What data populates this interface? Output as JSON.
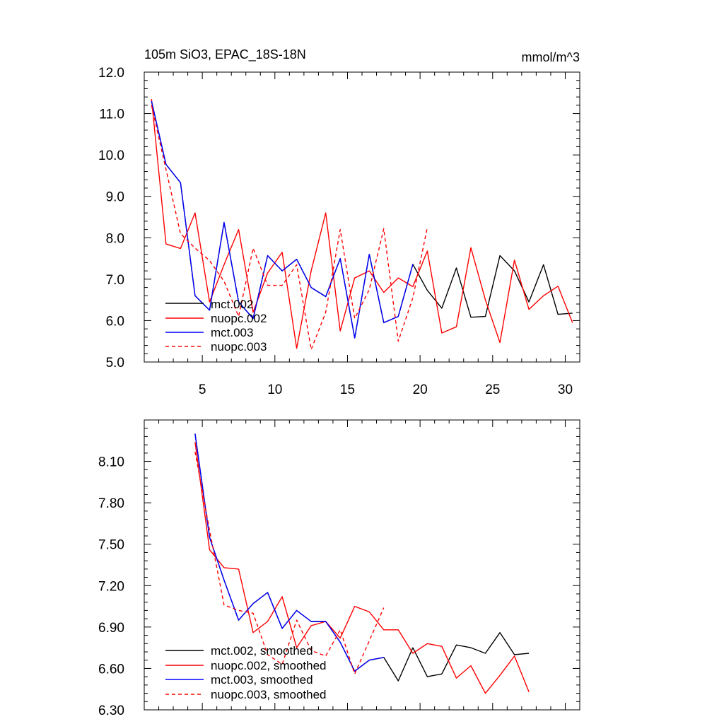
{
  "chart_data": [
    {
      "type": "line",
      "title": "105m SiO3, EPAC_18S-18N",
      "units": "mmol/m^3",
      "xlabel": "",
      "ylabel": "",
      "xlim": [
        1,
        31
      ],
      "ylim": [
        5.0,
        12.0
      ],
      "xticks": [
        5,
        10,
        15,
        20,
        25,
        30
      ],
      "xtick_labels": [
        "5",
        "10",
        "15",
        "20",
        "25",
        "30"
      ],
      "yticks": [
        5.0,
        6.0,
        7.0,
        8.0,
        9.0,
        10.0,
        11.0,
        12.0
      ],
      "ytick_labels": [
        "5.0",
        "6.0",
        "7.0",
        "8.0",
        "9.0",
        "10.0",
        "11.0",
        "12.0"
      ],
      "legend_position": "bottom-left",
      "series": [
        {
          "name": "mct.002",
          "color": "#000000",
          "dash": "solid",
          "x": [
            1.5,
            2.5,
            3.5,
            4.5,
            5.5,
            6.5,
            7.5,
            8.5,
            9.5,
            10.5,
            11.5,
            12.5,
            13.5,
            14.5,
            15.5,
            16.5,
            17.5,
            18.5,
            19.5,
            20.5,
            21.5,
            22.5,
            23.5,
            24.5,
            25.5,
            26.5,
            27.5,
            28.5,
            29.5,
            30.5
          ],
          "values": [
            11.3,
            9.77,
            9.33,
            6.6,
            6.25,
            8.37,
            6.45,
            6.05,
            7.57,
            7.2,
            7.48,
            6.8,
            6.58,
            7.5,
            5.58,
            7.6,
            5.95,
            6.1,
            7.36,
            6.73,
            6.3,
            7.27,
            6.08,
            6.1,
            7.57,
            7.2,
            6.45,
            7.35,
            6.15,
            6.18
          ]
        },
        {
          "name": "nuopc.002",
          "color": "#ff0000",
          "dash": "solid",
          "x": [
            1.5,
            2.5,
            3.5,
            4.5,
            5.5,
            6.5,
            7.5,
            8.5,
            9.5,
            10.5,
            11.5,
            12.5,
            13.5,
            14.5,
            15.5,
            16.5,
            17.5,
            18.5,
            19.5,
            20.5,
            21.5,
            22.5,
            23.5,
            24.5,
            25.5,
            26.5,
            27.5,
            28.5,
            29.5,
            30.5
          ],
          "values": [
            11.35,
            7.85,
            7.74,
            8.6,
            6.45,
            7.35,
            8.2,
            6.2,
            7.15,
            7.65,
            5.33,
            7.2,
            8.6,
            5.75,
            7.03,
            7.2,
            6.68,
            7.03,
            6.82,
            7.68,
            5.7,
            5.85,
            7.76,
            6.5,
            5.47,
            7.46,
            6.27,
            6.6,
            6.83,
            5.95
          ]
        },
        {
          "name": "mct.003",
          "color": "#0000ff",
          "dash": "solid",
          "x": [
            1.5,
            2.5,
            3.5,
            4.5,
            5.5,
            6.5,
            7.5,
            8.5,
            9.5,
            10.5,
            11.5,
            12.5,
            13.5,
            14.5,
            15.5,
            16.5,
            17.5,
            18.5,
            19.5
          ],
          "values": [
            11.3,
            9.77,
            9.33,
            6.6,
            6.25,
            8.37,
            6.45,
            6.05,
            7.57,
            7.2,
            7.48,
            6.8,
            6.58,
            7.5,
            5.58,
            7.6,
            5.95,
            6.1,
            7.36
          ]
        },
        {
          "name": "nuopc.003",
          "color": "#ff0000",
          "dash": "dashed",
          "x": [
            1.5,
            2.5,
            3.5,
            4.5,
            5.5,
            6.5,
            7.5,
            8.5,
            9.5,
            10.5,
            11.5,
            12.5,
            13.5,
            14.5,
            15.5,
            16.5,
            17.5,
            18.5,
            19.5,
            20.5
          ],
          "values": [
            11.2,
            9.65,
            8.1,
            7.75,
            7.45,
            6.95,
            6.1,
            7.75,
            6.85,
            6.85,
            7.35,
            5.3,
            6.2,
            8.2,
            6.05,
            6.75,
            8.22,
            5.5,
            6.55,
            8.25
          ]
        }
      ]
    },
    {
      "type": "line",
      "title": "",
      "xlabel": "",
      "ylabel": "",
      "xlim": [
        1,
        31
      ],
      "ylim": [
        6.3,
        8.4
      ],
      "xticks": [
        5,
        10,
        15,
        20,
        25,
        30
      ],
      "yticks": [
        6.3,
        6.6,
        6.9,
        7.2,
        7.5,
        7.8,
        8.1
      ],
      "ytick_labels": [
        "6.30",
        "6.60",
        "6.90",
        "7.20",
        "7.50",
        "7.80",
        "8.10"
      ],
      "legend_position": "bottom-left",
      "series": [
        {
          "name": "mct.002, smoothed",
          "color": "#000000",
          "dash": "solid",
          "x": [
            4.5,
            5.5,
            6.5,
            7.5,
            8.5,
            9.5,
            10.5,
            11.5,
            12.5,
            13.5,
            14.5,
            15.5,
            16.5,
            17.5,
            18.5,
            19.5,
            20.5,
            21.5,
            22.5,
            23.5,
            24.5,
            25.5,
            26.5,
            27.5
          ],
          "values": [
            8.3,
            7.55,
            7.24,
            6.95,
            7.07,
            7.15,
            6.89,
            7.02,
            6.94,
            6.94,
            6.79,
            6.58,
            6.66,
            6.68,
            6.51,
            6.75,
            6.54,
            6.56,
            6.77,
            6.75,
            6.71,
            6.86,
            6.7,
            6.71
          ]
        },
        {
          "name": "nuopc.002, smoothed",
          "color": "#ff0000",
          "dash": "solid",
          "x": [
            4.5,
            5.5,
            6.5,
            7.5,
            8.5,
            9.5,
            10.5,
            11.5,
            12.5,
            13.5,
            14.5,
            15.5,
            16.5,
            17.5,
            18.5,
            19.5,
            20.5,
            21.5,
            22.5,
            23.5,
            24.5,
            25.5,
            26.5,
            27.5
          ],
          "values": [
            8.24,
            7.46,
            7.33,
            7.32,
            6.86,
            6.94,
            7.12,
            6.75,
            6.91,
            6.94,
            6.82,
            7.05,
            7.01,
            6.88,
            6.88,
            6.71,
            6.78,
            6.76,
            6.53,
            6.62,
            6.42,
            6.55,
            6.69,
            6.43
          ]
        },
        {
          "name": "mct.003, smoothed",
          "color": "#0000ff",
          "dash": "solid",
          "x": [
            4.5,
            5.5,
            6.5,
            7.5,
            8.5,
            9.5,
            10.5,
            11.5,
            12.5,
            13.5,
            14.5,
            15.5,
            16.5,
            17.5
          ],
          "values": [
            8.3,
            7.55,
            7.24,
            6.95,
            7.07,
            7.15,
            6.89,
            7.02,
            6.94,
            6.94,
            6.79,
            6.58,
            6.66,
            6.68
          ]
        },
        {
          "name": "nuopc.003, smoothed",
          "color": "#ff0000",
          "dash": "dashed",
          "x": [
            4.5,
            5.5,
            6.5,
            7.5,
            8.5,
            9.5,
            10.5,
            11.5,
            12.5,
            13.5,
            14.5,
            15.5,
            16.5,
            17.5
          ],
          "values": [
            8.17,
            7.6,
            7.06,
            7.02,
            7.0,
            6.7,
            6.63,
            6.95,
            6.73,
            6.69,
            6.88,
            6.56,
            6.8,
            7.04
          ]
        }
      ]
    }
  ]
}
